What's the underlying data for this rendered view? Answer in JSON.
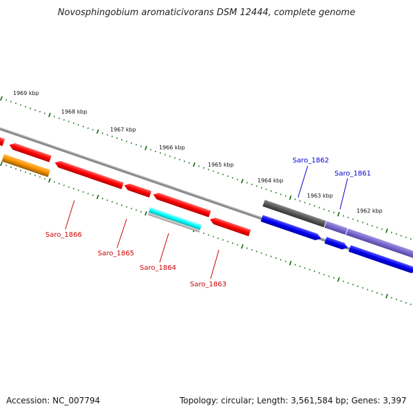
{
  "title": "Novosphingobium aromaticivorans DSM 12444, complete genome",
  "footer": {
    "accession": "Accession: NC_007794",
    "summary": "Topology: circular; Length: 3,561,584 bp; Genes: 3,397"
  },
  "colors": {
    "red_gene": "#ff0000",
    "blue_gene": "#0000ee",
    "orange_gene": "#ff9900",
    "cyan_gene": "#00ffff",
    "gray_gene": "#555555",
    "purple_gene": "#7766cc",
    "tick_green": "#006600",
    "backbone": "#888888",
    "label_red": "#cc0000",
    "label_blue": "#0000cc"
  },
  "kbp_labels": [
    "1969 kbp",
    "1968 kbp",
    "1967 kbp",
    "1966 kbp",
    "1965 kbp",
    "1964 kbp",
    "1963 kbp",
    "1962 kbp"
  ],
  "gene_labels": [
    {
      "text": "Saro_1866",
      "color": "red"
    },
    {
      "text": "Saro_1865",
      "color": "red"
    },
    {
      "text": "Saro_1864",
      "color": "red"
    },
    {
      "text": "Saro_1863",
      "color": "red"
    },
    {
      "text": "Saro_1862",
      "color": "blue"
    },
    {
      "text": "Saro_1861",
      "color": "blue"
    }
  ]
}
